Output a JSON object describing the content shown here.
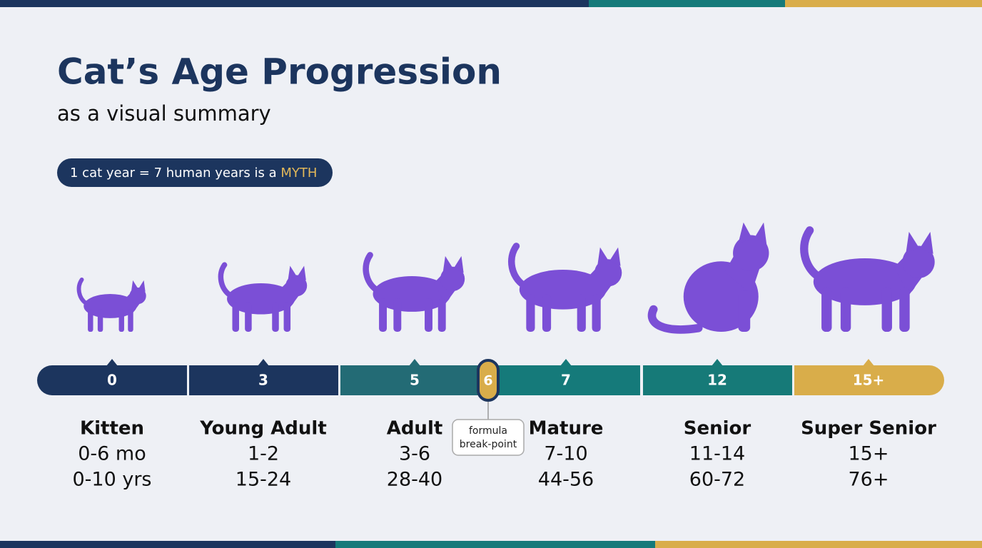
{
  "header": {
    "title": "Cat’s Age Progression",
    "subtitle": "as a visual summary"
  },
  "badge": {
    "text": "1 cat year = 7 human years is a",
    "highlight": "MYTH"
  },
  "stages": [
    {
      "marker": "0",
      "name": "Kitten",
      "cat_age": "0-6 mo",
      "human_age": "0-10 yrs",
      "color": "#1c355e"
    },
    {
      "marker": "3",
      "name": "Young Adult",
      "cat_age": "1-2",
      "human_age": "15-24",
      "color": "#1c355e"
    },
    {
      "marker": "5",
      "name": "Adult",
      "cat_age": "3-6",
      "human_age": "28-40",
      "color": "#236b75"
    },
    {
      "marker": "7",
      "name": "Mature",
      "cat_age": "7-10",
      "human_age": "44-56",
      "color": "#157a7a"
    },
    {
      "marker": "12",
      "name": "Senior",
      "cat_age": "11-14",
      "human_age": "60-72",
      "color": "#167a78"
    },
    {
      "marker": "15+",
      "name": "Super Senior",
      "cat_age": "15+",
      "human_age": "76+",
      "color": "#d9ad4a"
    }
  ],
  "breakpoint": {
    "marker": "6",
    "lines": [
      "formula",
      "break-point"
    ]
  }
}
